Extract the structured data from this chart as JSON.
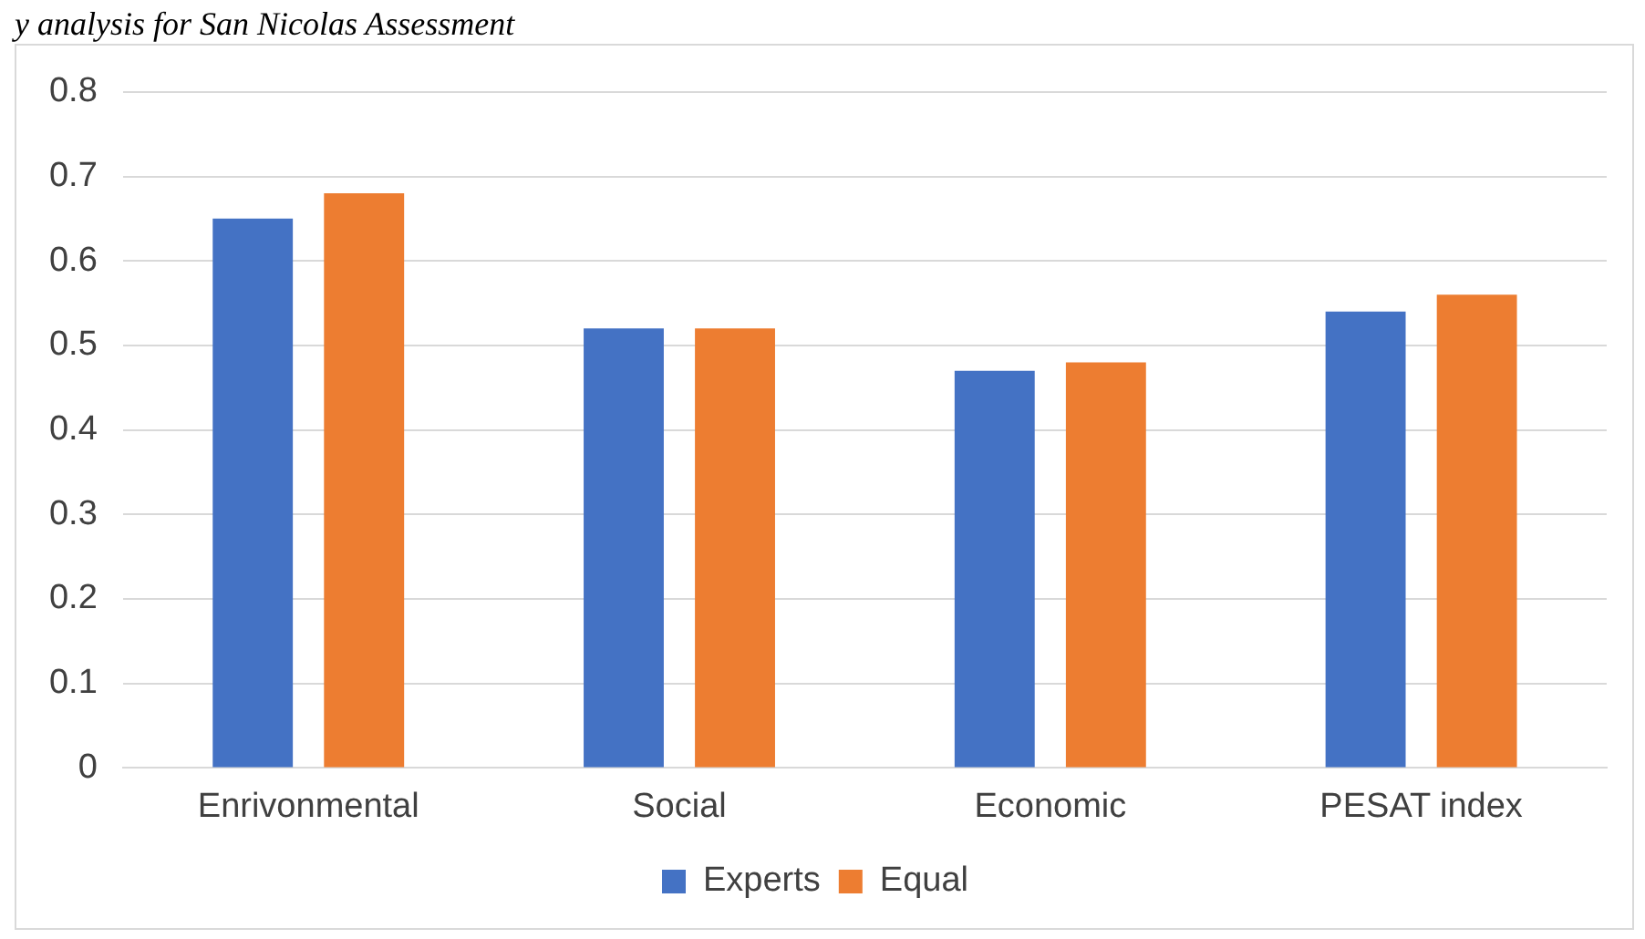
{
  "chart_data": {
    "type": "bar",
    "title": "y analysis for San Nicolas Assessment",
    "categories": [
      "Enrivonmental",
      "Social",
      "Economic",
      "PESAT index"
    ],
    "series": [
      {
        "name": "Experts",
        "color": "#4472c4",
        "values": [
          0.65,
          0.52,
          0.47,
          0.54
        ]
      },
      {
        "name": "Equal",
        "color": "#ed7d31",
        "values": [
          0.68,
          0.52,
          0.48,
          0.56
        ]
      }
    ],
    "ylim": [
      0,
      0.8
    ],
    "yticks": [
      0,
      0.1,
      0.2,
      0.3,
      0.4,
      0.5,
      0.6,
      0.7,
      0.8
    ],
    "grid": "y",
    "legend": "bottom"
  }
}
